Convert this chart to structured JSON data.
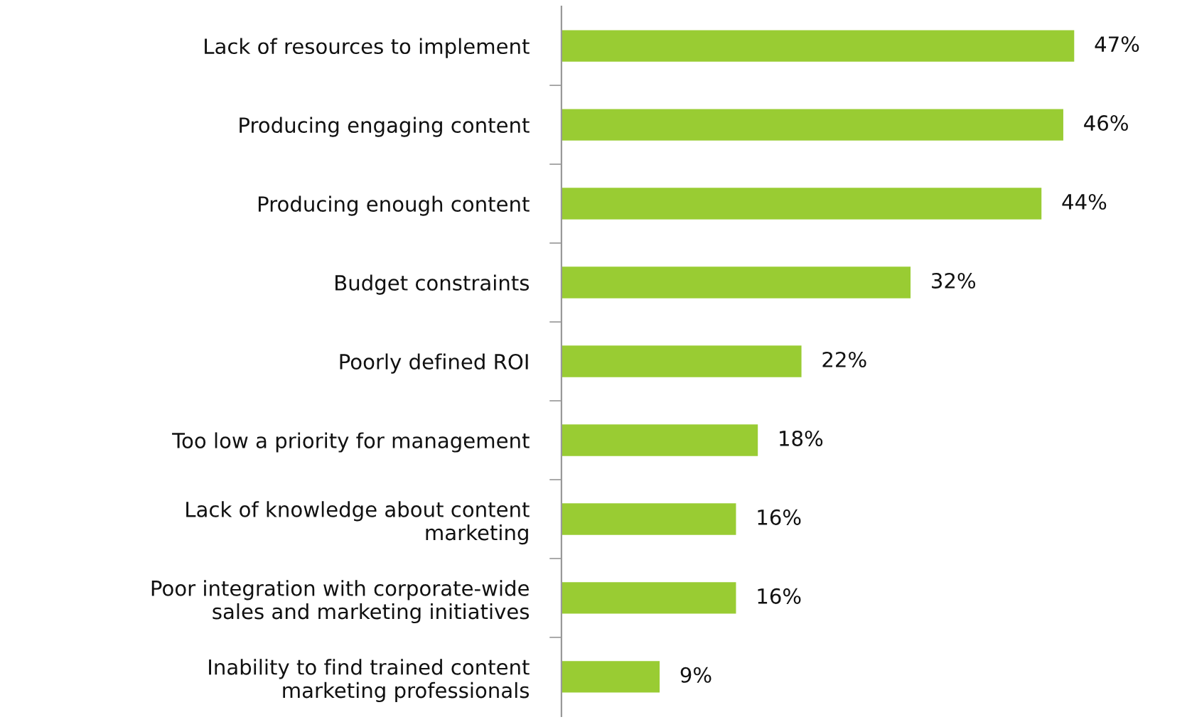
{
  "chart_data": {
    "type": "bar",
    "orientation": "horizontal",
    "data_labels": false,
    "categories": [
      "Lack of resources to implement",
      "Producing engaging content",
      "Producing enough content",
      "Budget constraints",
      "Poorly defined ROI",
      "Too low a priority for management",
      "Lack of knowledge about content\nmarketing",
      "Poor integration with corporate-wide\nsales and marketing initiatives",
      "Inability to find trained content\nmarketing professionals"
    ],
    "values": [
      47,
      46,
      44,
      32,
      22,
      18,
      16,
      16,
      9
    ],
    "value_labels": [
      "47%",
      "46%",
      "44%",
      "32%",
      "22%",
      "18%",
      "16%",
      "16%",
      "9%"
    ],
    "color": "#99cc33",
    "grid": false,
    "legend": false,
    "tick_labels": "y"
  }
}
